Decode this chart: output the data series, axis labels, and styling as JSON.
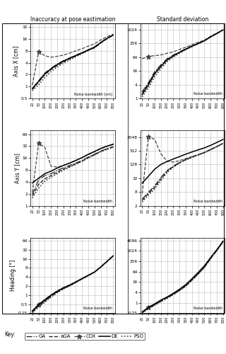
{
  "x_ticks": [
    20,
    50,
    100,
    150,
    200,
    250,
    300,
    350,
    400,
    450,
    500,
    600,
    700,
    800
  ],
  "col_titles": [
    "Inaccuracy at pose eastimation",
    "Standard deviation"
  ],
  "row_labels": [
    "Axis X [cm]",
    "Axis Y [cm]",
    "Heading [°]"
  ],
  "algorithms": [
    "GA",
    "aGA",
    "COX",
    "DE",
    "PSO"
  ],
  "plot_data": {
    "row0_col0": {
      "GA": [
        0.9,
        1.4,
        2.2,
        2.9,
        3.7,
        4.5,
        5.3,
        6.2,
        7.2,
        8.5,
        10.0,
        13.0,
        16.5,
        20.0
      ],
      "aGA": [
        0.85,
        1.3,
        2.0,
        2.7,
        3.4,
        4.2,
        5.0,
        5.9,
        6.9,
        8.2,
        9.5,
        12.5,
        16.0,
        19.5
      ],
      "COX": [
        1.1,
        7.5,
        6.0,
        5.5,
        5.8,
        6.2,
        7.0,
        8.0,
        9.0,
        10.5,
        12.0,
        15.0,
        18.0,
        21.0
      ],
      "DE": [
        0.9,
        1.35,
        2.1,
        2.8,
        3.6,
        4.4,
        5.2,
        6.1,
        7.1,
        8.4,
        9.9,
        12.9,
        16.4,
        19.9
      ],
      "PSO": [
        0.8,
        1.1,
        1.7,
        2.4,
        3.1,
        3.9,
        4.7,
        5.7,
        6.8,
        8.1,
        9.6,
        12.7,
        16.2,
        19.8
      ],
      "ylim": [
        0.5,
        40
      ],
      "yticks": [
        0.5,
        1,
        2,
        4,
        8,
        16,
        32
      ]
    },
    "row0_col1": {
      "GA": [
        2.0,
        5.0,
        15,
        30,
        55,
        80,
        110,
        150,
        200,
        260,
        340,
        500,
        700,
        1000
      ],
      "aGA": [
        1.8,
        4.5,
        13,
        27,
        50,
        75,
        105,
        145,
        195,
        255,
        335,
        495,
        695,
        995
      ],
      "COX": [
        55,
        70,
        75,
        80,
        95,
        110,
        140,
        175,
        225,
        285,
        360,
        530,
        730,
        1020
      ],
      "DE": [
        1.5,
        4.0,
        12,
        25,
        48,
        73,
        103,
        143,
        193,
        253,
        333,
        493,
        693,
        993
      ],
      "PSO": [
        1.2,
        3.0,
        9,
        20,
        40,
        65,
        95,
        135,
        185,
        248,
        328,
        490,
        690,
        990
      ],
      "ylim": [
        1,
        2000
      ],
      "yticks": [
        1,
        4,
        16,
        64,
        256,
        1024
      ]
    },
    "row1_col0": {
      "GA": [
        2.0,
        4.5,
        5.8,
        6.5,
        7.8,
        9.2,
        10.5,
        12.0,
        14.0,
        17.0,
        20.0,
        24.0,
        27.5,
        31.0
      ],
      "aGA": [
        1.8,
        3.5,
        4.8,
        5.8,
        7.0,
        8.5,
        9.8,
        11.5,
        13.5,
        16.5,
        19.5,
        23.5,
        27.0,
        30.5
      ],
      "COX": [
        2.2,
        38.0,
        30.0,
        10.0,
        9.5,
        10.5,
        12.0,
        14.0,
        16.5,
        19.5,
        23.0,
        27.5,
        31.5,
        35.0
      ],
      "DE": [
        3.8,
        5.0,
        6.5,
        7.5,
        9.0,
        10.5,
        12.0,
        14.0,
        16.5,
        20.0,
        23.5,
        28.0,
        32.0,
        36.0
      ],
      "PSO": [
        1.6,
        2.8,
        4.2,
        5.2,
        6.5,
        8.0,
        9.5,
        11.2,
        13.2,
        16.2,
        19.2,
        23.2,
        26.8,
        30.2
      ],
      "ylim": [
        1,
        80
      ],
      "yticks": [
        1,
        2,
        4,
        8,
        16,
        32,
        64
      ]
    },
    "row1_col1": {
      "GA": [
        4.0,
        8.0,
        15,
        35,
        70,
        110,
        160,
        215,
        275,
        345,
        430,
        580,
        780,
        1080
      ],
      "aGA": [
        3.5,
        7.0,
        13,
        30,
        65,
        105,
        155,
        210,
        270,
        340,
        425,
        575,
        775,
        1075
      ],
      "COX": [
        7.0,
        2200,
        1600,
        380,
        180,
        165,
        190,
        235,
        285,
        350,
        440,
        590,
        790,
        1090
      ],
      "DE": [
        20,
        40,
        80,
        130,
        175,
        225,
        285,
        365,
        455,
        565,
        685,
        885,
        1185,
        1600
      ],
      "PSO": [
        3.0,
        6.0,
        11,
        25,
        58,
        98,
        148,
        203,
        263,
        333,
        418,
        568,
        768,
        1068
      ],
      "ylim": [
        2,
        4000
      ],
      "yticks": [
        2,
        8,
        32,
        128,
        512,
        2048
      ]
    },
    "row2_col0": {
      "GA": [
        0.28,
        0.45,
        0.65,
        0.95,
        1.3,
        1.7,
        2.1,
        2.7,
        3.5,
        4.5,
        5.8,
        8.5,
        13.0,
        20.0
      ],
      "aGA": [
        0.27,
        0.43,
        0.62,
        0.9,
        1.25,
        1.65,
        2.05,
        2.65,
        3.45,
        4.45,
        5.75,
        8.45,
        12.9,
        19.8
      ],
      "COX": [
        0.3,
        0.5,
        0.72,
        1.02,
        1.38,
        1.78,
        2.18,
        2.78,
        3.58,
        4.58,
        5.88,
        8.58,
        13.1,
        20.2
      ],
      "DE": [
        0.3,
        0.48,
        0.7,
        1.0,
        1.35,
        1.75,
        2.15,
        2.75,
        3.55,
        4.55,
        5.85,
        8.55,
        13.05,
        20.1
      ],
      "PSO": [
        0.26,
        0.4,
        0.58,
        0.86,
        1.2,
        1.6,
        2.0,
        2.6,
        3.4,
        4.4,
        5.7,
        8.4,
        12.8,
        19.6
      ],
      "ylim": [
        0.25,
        80
      ],
      "yticks": [
        0.25,
        0.5,
        1,
        2,
        4,
        8,
        16,
        32,
        64
      ]
    },
    "row2_col1": {
      "GA": [
        0.28,
        0.5,
        0.8,
        1.3,
        2.0,
        3.2,
        5.5,
        10,
        22,
        50,
        120,
        380,
        1100,
        3500
      ],
      "aGA": [
        0.27,
        0.48,
        0.77,
        1.25,
        1.95,
        3.1,
        5.3,
        9.5,
        21,
        48,
        115,
        370,
        1080,
        3450
      ],
      "COX": [
        0.3,
        0.55,
        0.85,
        1.4,
        2.1,
        3.4,
        5.8,
        10.5,
        23,
        52,
        125,
        390,
        1120,
        3550
      ],
      "DE": [
        0.3,
        0.55,
        0.88,
        1.45,
        2.2,
        3.6,
        6.2,
        11.5,
        25,
        58,
        140,
        420,
        1200,
        3800
      ],
      "PSO": [
        0.26,
        0.45,
        0.72,
        1.18,
        1.85,
        3.0,
        5.1,
        9.2,
        20,
        46,
        112,
        360,
        1060,
        3400
      ],
      "ylim": [
        0.25,
        6000
      ],
      "yticks": [
        0.25,
        1,
        4,
        16,
        64,
        256,
        1024,
        4096
      ]
    }
  },
  "style": {
    "GA": {
      "ls": "-.",
      "lw": 0.9,
      "color": "#222222",
      "marker": null,
      "ms": 0
    },
    "aGA": {
      "ls": "--",
      "lw": 1.0,
      "color": "#222222",
      "marker": null,
      "ms": 0
    },
    "COX": {
      "ls": "--",
      "lw": 0.9,
      "color": "#444444",
      "marker": "*",
      "ms": 5,
      "markevery": 1
    },
    "DE": {
      "ls": "-",
      "lw": 1.1,
      "color": "#000000",
      "marker": null,
      "ms": 0
    },
    "PSO": {
      "ls": ":",
      "lw": 1.1,
      "color": "#222222",
      "marker": null,
      "ms": 0
    }
  },
  "noise_label": "Noise bandwidth",
  "noise_label_x": "Noise bandwidth [cm]",
  "bg_color": "#ffffff",
  "grid_color": "#bbbbbb"
}
